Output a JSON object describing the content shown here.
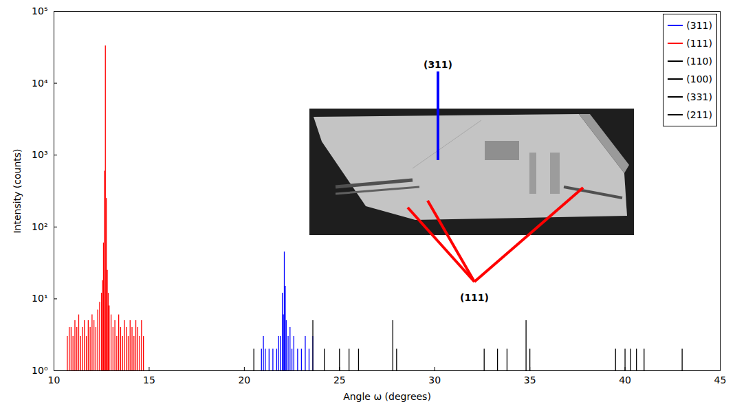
{
  "chart_data": {
    "type": "stem",
    "xlabel": "Angle ω (degrees)",
    "ylabel": "Intensity (counts)",
    "log": "y",
    "grid": false,
    "legend": "upper right",
    "xlim": [
      10,
      45
    ],
    "xticks": [
      10,
      15,
      20,
      25,
      30,
      35,
      40,
      45
    ],
    "ylim": [
      1,
      100000
    ],
    "yticks": [
      {
        "value": 1,
        "label": "10⁰"
      },
      {
        "value": 10,
        "label": "10¹"
      },
      {
        "value": 100,
        "label": "10²"
      },
      {
        "value": 1000,
        "label": "10³"
      },
      {
        "value": 10000,
        "label": "10⁴"
      },
      {
        "value": 100000,
        "label": "10⁵"
      }
    ],
    "series": [
      {
        "name": "(311)",
        "color": "#0000ff",
        "x": [
          20.9,
          21.0,
          21.1,
          21.3,
          21.5,
          21.7,
          21.8,
          21.9,
          22.0,
          22.05,
          22.1,
          22.15,
          22.2,
          22.3,
          22.4,
          22.5,
          22.6,
          22.8,
          23.0,
          23.2,
          23.4,
          23.6
        ],
        "values": [
          2,
          3,
          2,
          2,
          2,
          2,
          3,
          3,
          12,
          6,
          45,
          15,
          5,
          3,
          4,
          2,
          3,
          2,
          2,
          3,
          2,
          3
        ]
      },
      {
        "name": "(111)",
        "color": "#ff0000",
        "x": [
          10.7,
          10.8,
          10.9,
          11.0,
          11.1,
          11.2,
          11.3,
          11.4,
          11.5,
          11.6,
          11.7,
          11.8,
          11.9,
          12.0,
          12.1,
          12.2,
          12.3,
          12.4,
          12.5,
          12.55,
          12.6,
          12.65,
          12.7,
          12.75,
          12.8,
          12.85,
          12.9,
          13.0,
          13.1,
          13.2,
          13.3,
          13.4,
          13.5,
          13.6,
          13.7,
          13.8,
          13.9,
          14.0,
          14.1,
          14.2,
          14.3,
          14.4,
          14.5,
          14.6,
          14.7
        ],
        "values": [
          3,
          4,
          4,
          3,
          5,
          4,
          6,
          3,
          4,
          5,
          3,
          5,
          4,
          6,
          5,
          4,
          7,
          9,
          12,
          18,
          60,
          600,
          33000,
          250,
          25,
          12,
          8,
          6,
          4,
          5,
          3,
          6,
          4,
          3,
          5,
          4,
          3,
          5,
          4,
          3,
          5,
          4,
          3,
          5,
          3
        ]
      },
      {
        "name": "(110)",
        "color": "#000000",
        "x": [
          20.5,
          23.6,
          24.2,
          25.0,
          25.5
        ],
        "values": [
          2,
          5,
          2,
          2,
          2
        ]
      },
      {
        "name": "(100)",
        "color": "#000000",
        "x": [
          26.0,
          27.8,
          28.0,
          32.6
        ],
        "values": [
          2,
          5,
          2,
          2
        ]
      },
      {
        "name": "(331)",
        "color": "#000000",
        "x": [
          33.3,
          33.8,
          34.8,
          35.0,
          39.5
        ],
        "values": [
          2,
          2,
          5,
          2,
          2
        ]
      },
      {
        "name": "(211)",
        "color": "#000000",
        "x": [
          40.0,
          40.3,
          40.6,
          41.0,
          43.0
        ],
        "values": [
          2,
          2,
          2,
          2,
          2
        ]
      }
    ],
    "annotations": [
      {
        "text": "(311)",
        "color": "#0000ff"
      },
      {
        "text": "(111)",
        "color": "#ff0000"
      }
    ]
  }
}
